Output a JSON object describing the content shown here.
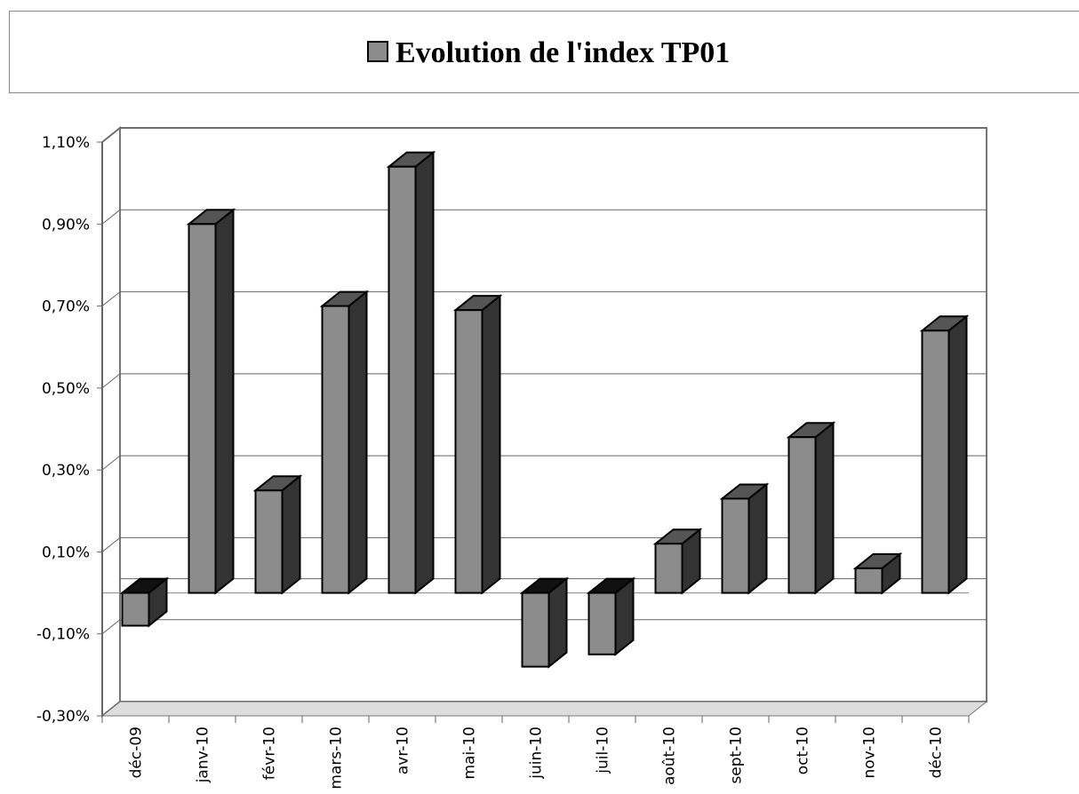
{
  "chart_data": {
    "type": "bar",
    "categories": [
      "déc-09",
      "janv-10",
      "févr-10",
      "mars-10",
      "avr-10",
      "mai-10",
      "juin-10",
      "juil-10",
      "août-10",
      "sept-10",
      "oct-10",
      "nov-10",
      "déc-10"
    ],
    "series": [
      {
        "name": "Evolution de l'index TP01",
        "color": "#8c8c8c",
        "values": [
          -0.08,
          0.9,
          0.25,
          0.7,
          1.04,
          0.69,
          -0.18,
          -0.15,
          0.12,
          0.23,
          0.38,
          0.06,
          0.64
        ]
      }
    ],
    "ylim": [
      -0.3,
      1.1
    ],
    "yticks": [
      {
        "value": -0.3,
        "label": "-0,30%"
      },
      {
        "value": -0.1,
        "label": "-0,10%"
      },
      {
        "value": 0.1,
        "label": "0,10%"
      },
      {
        "value": 0.3,
        "label": "0,30%"
      },
      {
        "value": 0.5,
        "label": "0,50%"
      },
      {
        "value": 0.7,
        "label": "0,70%"
      },
      {
        "value": 0.9,
        "label": "0,90%"
      },
      {
        "value": 1.1,
        "label": "1,10%"
      }
    ],
    "grid": true,
    "legend": "top"
  }
}
